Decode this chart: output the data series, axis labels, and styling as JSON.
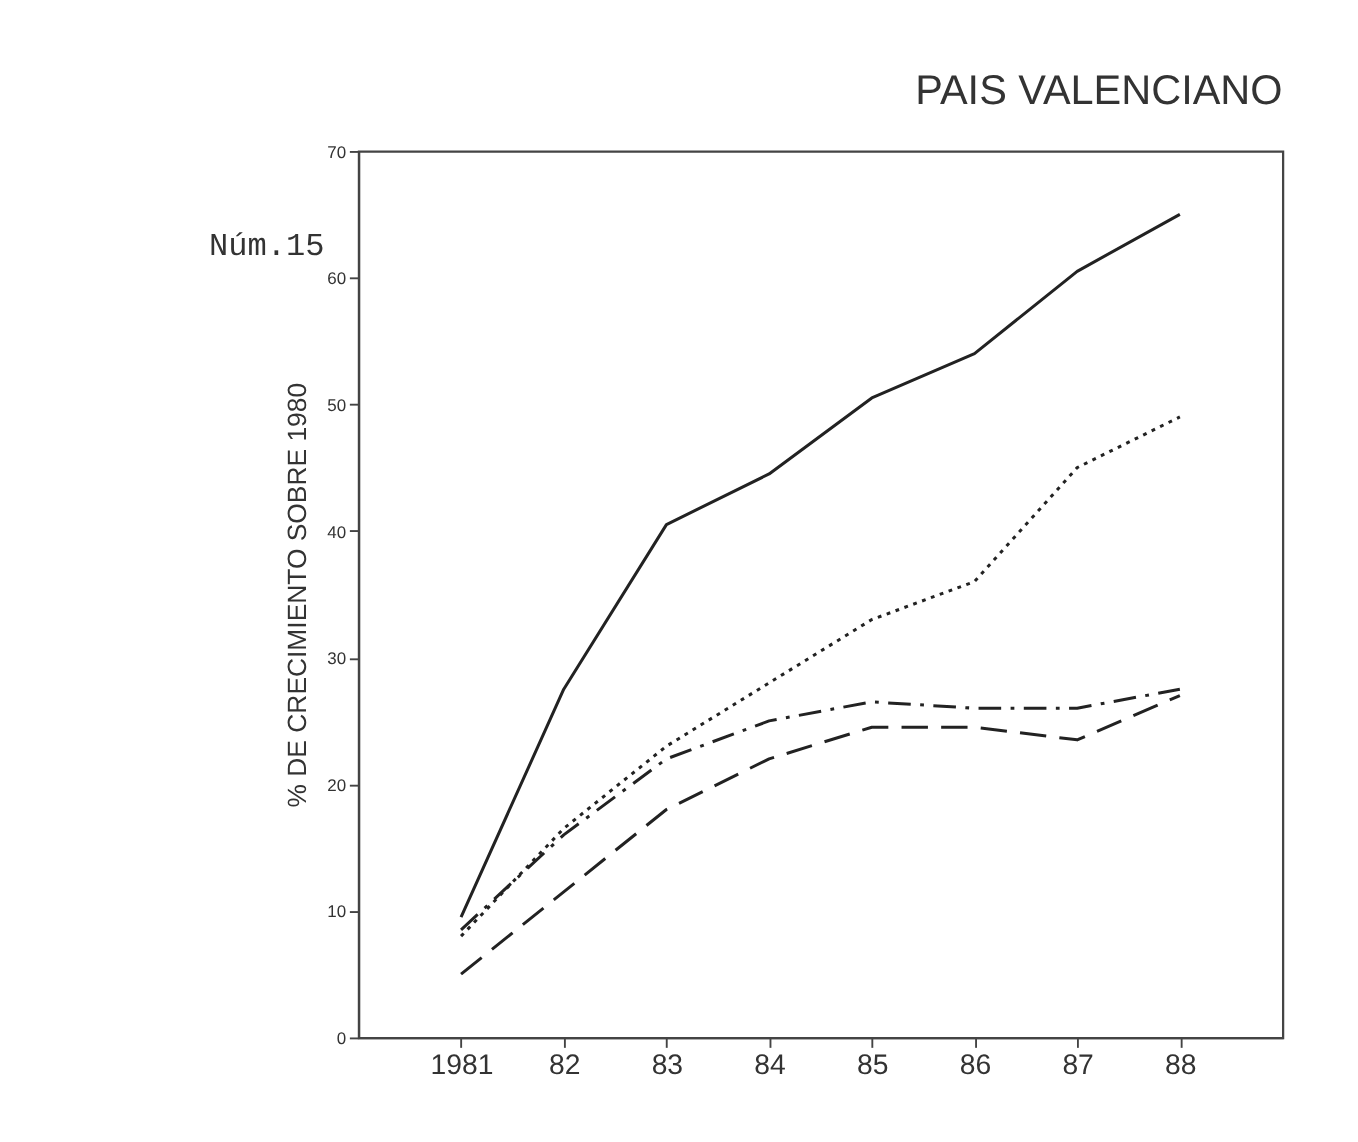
{
  "chart_data": {
    "type": "line",
    "title": "PAIS VALENCIANO",
    "ylabel": "% DE CRECIMIENTO SOBRE 1980",
    "annotations": [
      "Núm.15"
    ],
    "categories": [
      "1981",
      "82",
      "83",
      "84",
      "85",
      "86",
      "87",
      "88"
    ],
    "series": [
      {
        "color": "#222222",
        "line_style": "solid",
        "values": [
          9.5,
          27.5,
          40.5,
          44.5,
          50.5,
          54,
          60.5,
          65
        ]
      },
      {
        "color": "#222222",
        "line_style": "dotted",
        "values": [
          8,
          16.5,
          23,
          28,
          33,
          36,
          45,
          49
        ]
      },
      {
        "color": "#222222",
        "line_style": "dashdot",
        "values": [
          8.5,
          16,
          22,
          25,
          26.5,
          26,
          26,
          27.5
        ]
      },
      {
        "color": "#222222",
        "line_style": "dashed",
        "values": [
          5,
          11.5,
          18,
          22,
          24.5,
          24.5,
          23.5,
          27
        ]
      }
    ],
    "ylim": [
      0,
      70
    ],
    "yticks": [
      0,
      10,
      20,
      30,
      40,
      50,
      60,
      70
    ],
    "grid": false,
    "marker": "none"
  }
}
